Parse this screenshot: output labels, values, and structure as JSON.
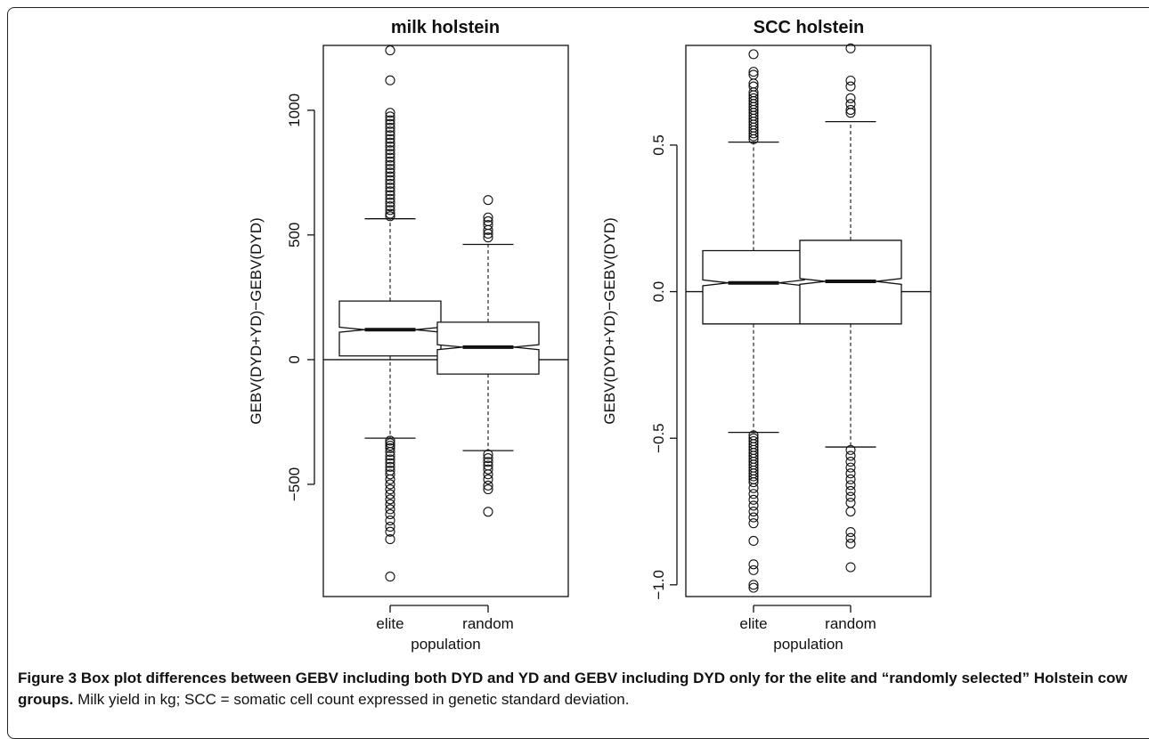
{
  "chart_data": [
    {
      "type": "boxplot",
      "title": "milk holstein",
      "xlabel": "population",
      "ylabel": "GEBV(DYD+YD)−GEBV(DYD)",
      "categories": [
        "elite",
        "random"
      ],
      "ylim": [
        -950,
        1260
      ],
      "yticks": [
        -500,
        0,
        500,
        1000
      ],
      "ytick_labels": [
        "−500",
        "0",
        "500",
        "1000"
      ],
      "reference_line_y": 0,
      "notched": true,
      "boxes": [
        {
          "category": "elite",
          "median": 120,
          "q1": 15,
          "q3": 235,
          "notch_low": 110,
          "notch_high": 130,
          "whisker_low": -315,
          "whisker_high": 565,
          "outliers": [
            1240,
            1120,
            990,
            975,
            960,
            945,
            930,
            915,
            900,
            885,
            870,
            855,
            840,
            825,
            810,
            795,
            780,
            765,
            750,
            735,
            720,
            705,
            690,
            675,
            660,
            645,
            630,
            615,
            600,
            585,
            575,
            -325,
            -335,
            -345,
            -355,
            -370,
            -385,
            -400,
            -415,
            -430,
            -445,
            -460,
            -480,
            -500,
            -520,
            -540,
            -560,
            -580,
            -600,
            -620,
            -645,
            -670,
            -690,
            -720,
            -870
          ]
        },
        {
          "category": "random",
          "median": 50,
          "q1": -58,
          "q3": 150,
          "notch_low": 40,
          "notch_high": 60,
          "whisker_low": -365,
          "whisker_high": 462,
          "outliers": [
            640,
            570,
            555,
            540,
            520,
            505,
            490,
            -380,
            -395,
            -410,
            -425,
            -440,
            -460,
            -480,
            -505,
            -520,
            -610
          ]
        }
      ]
    },
    {
      "type": "boxplot",
      "title": "SCC holstein",
      "xlabel": "population",
      "ylabel": "GEBV(DYD+YD)−GEBV(DYD)",
      "categories": [
        "elite",
        "random"
      ],
      "ylim": [
        -1.04,
        0.84
      ],
      "yticks": [
        -1.0,
        -0.5,
        0.0,
        0.5
      ],
      "ytick_labels": [
        "−1.0",
        "−0.5",
        "0.0",
        "0.5"
      ],
      "reference_line_y": 0,
      "notched": true,
      "boxes": [
        {
          "category": "elite",
          "median": 0.03,
          "q1": -0.11,
          "q3": 0.14,
          "notch_low": 0.02,
          "notch_high": 0.04,
          "whisker_low": -0.48,
          "whisker_high": 0.51,
          "outliers": [
            0.81,
            0.75,
            0.74,
            0.71,
            0.7,
            0.68,
            0.67,
            0.66,
            0.65,
            0.64,
            0.63,
            0.62,
            0.61,
            0.6,
            0.59,
            0.58,
            0.57,
            0.56,
            0.55,
            0.54,
            0.53,
            0.52,
            -0.49,
            -0.5,
            -0.51,
            -0.52,
            -0.53,
            -0.54,
            -0.55,
            -0.56,
            -0.57,
            -0.58,
            -0.59,
            -0.6,
            -0.61,
            -0.62,
            -0.63,
            -0.64,
            -0.65,
            -0.67,
            -0.69,
            -0.71,
            -0.73,
            -0.75,
            -0.77,
            -0.79,
            -0.85,
            -0.93,
            -0.95,
            -1.0,
            -1.01
          ]
        },
        {
          "category": "random",
          "median": 0.035,
          "q1": -0.11,
          "q3": 0.175,
          "notch_low": 0.025,
          "notch_high": 0.045,
          "whisker_low": -0.53,
          "whisker_high": 0.58,
          "outliers": [
            0.83,
            0.72,
            0.7,
            0.66,
            0.64,
            0.62,
            0.61,
            -0.54,
            -0.56,
            -0.58,
            -0.6,
            -0.62,
            -0.64,
            -0.66,
            -0.68,
            -0.7,
            -0.72,
            -0.75,
            -0.82,
            -0.84,
            -0.86,
            -0.94
          ]
        }
      ]
    }
  ],
  "caption": {
    "label": "Figure 3",
    "bold_text": "Box plot differences between GEBV including both DYD and YD and GEBV including DYD only for the elite and “randomly selected” Holstein cow groups.",
    "normal_text": "Milk yield in kg; SCC = somatic cell count expressed in genetic standard deviation."
  }
}
